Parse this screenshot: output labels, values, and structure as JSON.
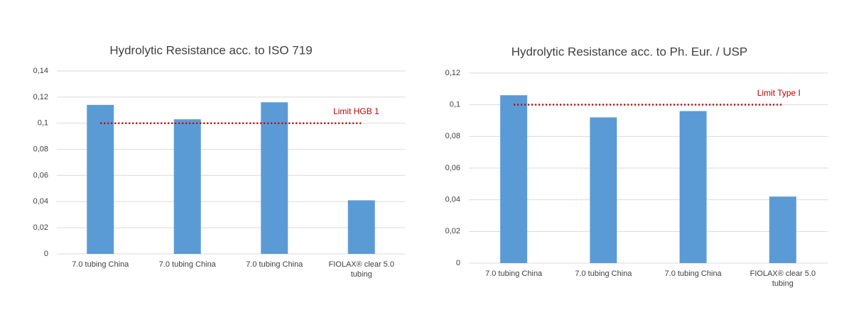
{
  "chart_data": [
    {
      "type": "bar",
      "title": "Hydrolytic Resistance acc. to ISO 719",
      "categories": [
        "7.0 tubing China",
        "7.0 tubing China",
        "7.0 tubing China",
        "FIOLAX® clear 5.0 tubing"
      ],
      "values": [
        0.114,
        0.103,
        0.116,
        0.041
      ],
      "color": "#5b9bd5",
      "ylim": [
        0,
        0.14
      ],
      "yticks": [
        0,
        {
          "value": 0.02,
          "label": "0,02"
        },
        {
          "value": 0.04,
          "label": "0,04"
        },
        {
          "value": 0.06,
          "label": "0,06"
        },
        {
          "value": 0.08,
          "label": "0,08"
        },
        {
          "value": 0.1,
          "label": "0,1"
        },
        {
          "value": 0.12,
          "label": "0,12"
        },
        {
          "value": 0.14,
          "label": "0,14"
        }
      ],
      "grid": true,
      "limit": {
        "value": 0.1,
        "label": "Limit HGB 1",
        "color": "#c00000"
      }
    },
    {
      "type": "bar",
      "title": "Hydrolytic Resistance acc. to Ph. Eur. / USP",
      "categories": [
        "7.0 tubing China",
        "7.0 tubing China",
        "7.0 tubing China",
        "FIOLAX® clear 5.0 tubing"
      ],
      "values": [
        0.106,
        0.092,
        0.096,
        0.042
      ],
      "color": "#5b9bd5",
      "ylim": [
        0,
        0.12
      ],
      "yticks": [
        0,
        {
          "value": 0.02,
          "label": "0,02"
        },
        {
          "value": 0.04,
          "label": "0,04"
        },
        {
          "value": 0.06,
          "label": "0,06"
        },
        {
          "value": 0.08,
          "label": "0,08"
        },
        {
          "value": 0.1,
          "label": "0,1"
        },
        {
          "value": 0.12,
          "label": "0,12"
        }
      ],
      "grid": true,
      "limit": {
        "value": 0.1,
        "label": "Limit Type I",
        "color": "#c00000"
      }
    }
  ]
}
